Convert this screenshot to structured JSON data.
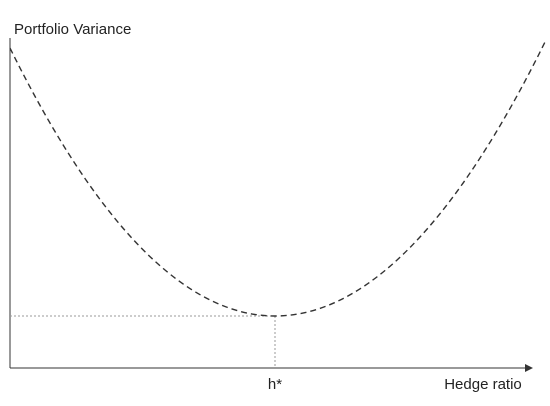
{
  "y_axis": {
    "label": "Portfolio Variance"
  },
  "x_axis": {
    "label": "Hedge ratio",
    "marker_label": "h*"
  }
}
